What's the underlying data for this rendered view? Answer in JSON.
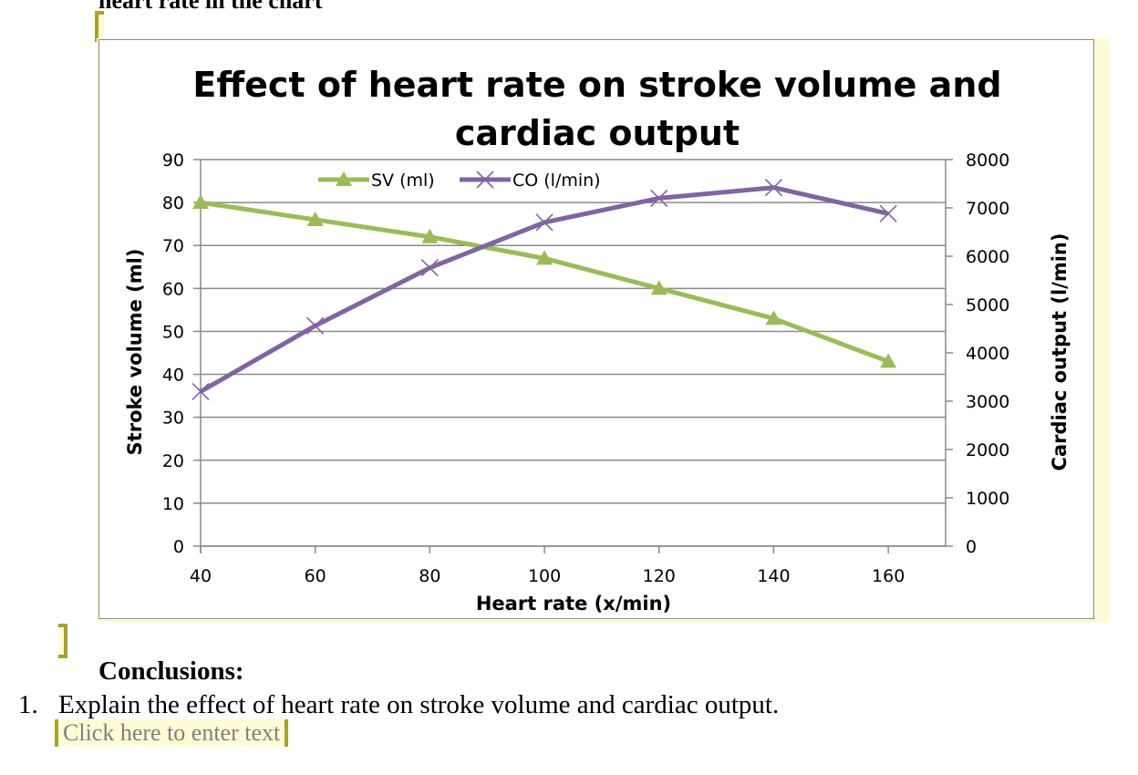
{
  "document": {
    "cut_off_heading": "heart rate in the chart",
    "conclusions_heading": "Conclusions:",
    "questions": [
      {
        "number": "1.",
        "text": "Explain the effect of heart rate on stroke volume and cardiac output.",
        "answer_placeholder": "Click here to enter text"
      }
    ],
    "content_control_color": "#a5a22e",
    "content_control_fill": "#fffbd6"
  },
  "chart_data": {
    "type": "line",
    "title": "Effect of heart rate on stroke volume and cardiac output",
    "title_lines": [
      "Effect of heart rate on stroke volume and",
      "cardiac output"
    ],
    "xlabel": "Heart rate (x/min)",
    "ylabel": "Stroke volume (ml)",
    "y2label": "Cardiac output (l/min)",
    "x": [
      40,
      60,
      80,
      100,
      120,
      140,
      160
    ],
    "x_ticks": [
      "40",
      "60",
      "80",
      "100",
      "120",
      "140",
      "160"
    ],
    "xlim": [
      40,
      170
    ],
    "ylim": [
      0,
      90
    ],
    "y_ticks": [
      "0",
      "10",
      "20",
      "30",
      "40",
      "50",
      "60",
      "70",
      "80",
      "90"
    ],
    "y2lim": [
      0,
      8000
    ],
    "y2_ticks": [
      "0",
      "1000",
      "2000",
      "3000",
      "4000",
      "5000",
      "6000",
      "7000",
      "8000"
    ],
    "grid": true,
    "legend_position": "top-center",
    "series": [
      {
        "name": "SV (ml)",
        "axis": "left",
        "color": "#9bbb59",
        "marker": "triangle",
        "values": [
          80,
          76,
          72,
          67,
          60,
          53,
          43
        ]
      },
      {
        "name": "CO (l/min)",
        "axis": "right",
        "color": "#8064a2",
        "marker": "x",
        "values": [
          3200,
          4560,
          5760,
          6700,
          7200,
          7420,
          6880
        ]
      }
    ]
  }
}
